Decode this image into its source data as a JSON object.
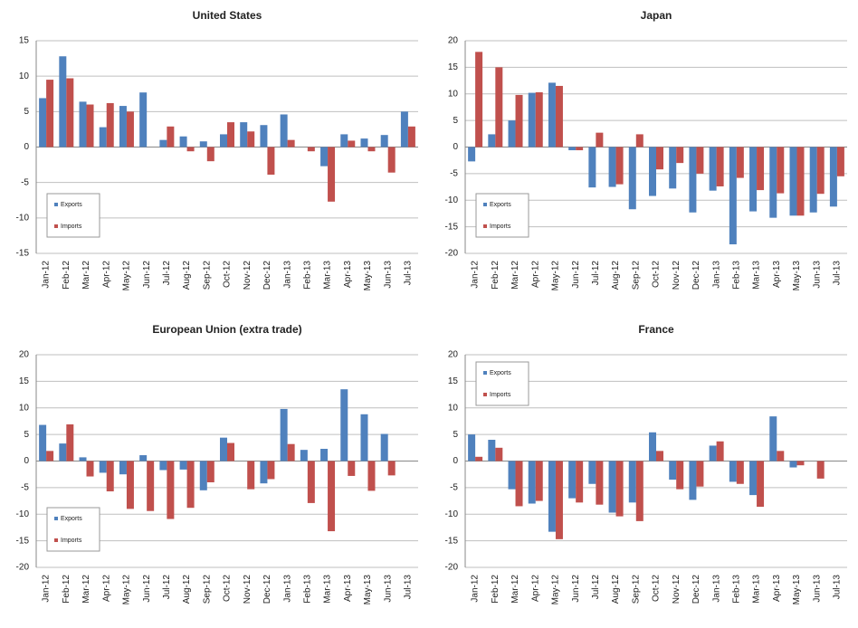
{
  "chart_data": [
    {
      "type": "bar",
      "title": "United States",
      "categories": [
        "Jan-12",
        "Feb-12",
        "Mar-12",
        "Apr-12",
        "May-12",
        "Jun-12",
        "Jul-12",
        "Aug-12",
        "Sep-12",
        "Oct-12",
        "Nov-12",
        "Dec-12",
        "Jan-13",
        "Feb-13",
        "Mar-13",
        "Apr-13",
        "May-13",
        "Jun-13",
        "Jul-13"
      ],
      "series": [
        {
          "name": "Exports",
          "color": "#4f81bd",
          "values": [
            6.9,
            12.8,
            6.4,
            2.8,
            5.8,
            7.7,
            1.0,
            1.5,
            0.8,
            1.8,
            3.5,
            3.1,
            4.6,
            0,
            -2.7,
            1.8,
            1.2,
            1.7,
            5.0
          ]
        },
        {
          "name": "Imports",
          "color": "#c0504d",
          "values": [
            9.5,
            9.7,
            6.0,
            6.2,
            5.0,
            0,
            2.9,
            -0.6,
            -2.0,
            3.5,
            2.2,
            -3.9,
            1.0,
            -0.6,
            -7.7,
            0.9,
            -0.6,
            -3.6,
            2.9
          ]
        }
      ],
      "ylim": [
        -15,
        15
      ],
      "yticks": [
        -15,
        -10,
        -5,
        0,
        5,
        10,
        15
      ],
      "grid": true,
      "legend": "lower left"
    },
    {
      "type": "bar",
      "title": "Japan",
      "categories": [
        "Jan-12",
        "Feb-12",
        "Mar-12",
        "Apr-12",
        "May-12",
        "Jun-12",
        "Jul-12",
        "Aug-12",
        "Sep-12",
        "Oct-12",
        "Nov-12",
        "Dec-12",
        "Jan-13",
        "Feb-13",
        "Mar-13",
        "Apr-13",
        "May-13",
        "Jun-13",
        "Jul-13"
      ],
      "series": [
        {
          "name": "Exports",
          "color": "#4f81bd",
          "values": [
            -2.7,
            2.4,
            5.0,
            10.2,
            12.1,
            -0.6,
            -7.6,
            -7.5,
            -11.7,
            -9.2,
            -7.8,
            -12.3,
            -8.2,
            -18.3,
            -12.1,
            -13.3,
            -12.9,
            -12.3,
            -11.2
          ]
        },
        {
          "name": "Imports",
          "color": "#c0504d",
          "values": [
            17.9,
            15.0,
            9.8,
            10.3,
            11.5,
            -0.6,
            2.7,
            -7.0,
            2.4,
            -4.2,
            -3.0,
            -5.0,
            -7.4,
            -5.8,
            -8.1,
            -8.7,
            -12.9,
            -8.8,
            -5.5
          ]
        }
      ],
      "ylim": [
        -20,
        20
      ],
      "yticks": [
        -20,
        -15,
        -10,
        -5,
        0,
        5,
        10,
        15,
        20
      ],
      "grid": true,
      "legend": "lower left"
    },
    {
      "type": "bar",
      "title": "European Union (extra trade)",
      "categories": [
        "Jan-12",
        "Feb-12",
        "Mar-12",
        "Apr-12",
        "May-12",
        "Jun-12",
        "Jul-12",
        "Aug-12",
        "Sep-12",
        "Oct-12",
        "Nov-12",
        "Dec-12",
        "Jan-13",
        "Feb-13",
        "Mar-13",
        "Apr-13",
        "May-13",
        "Jun-13",
        "Jul-13"
      ],
      "series": [
        {
          "name": "Exports",
          "color": "#4f81bd",
          "values": [
            6.8,
            3.3,
            0.7,
            -2.2,
            -2.5,
            1.1,
            -1.7,
            -1.6,
            -5.5,
            4.4,
            0,
            -4.2,
            9.8,
            2.1,
            2.3,
            13.5,
            8.8,
            5.1,
            0
          ]
        },
        {
          "name": "Imports",
          "color": "#c0504d",
          "values": [
            1.9,
            6.9,
            -2.9,
            -5.7,
            -9.0,
            -9.4,
            -10.9,
            -8.8,
            -4.0,
            3.4,
            -5.3,
            -3.4,
            3.2,
            -7.9,
            -13.2,
            -2.8,
            -5.6,
            -2.7,
            0
          ]
        }
      ],
      "ylim": [
        -20,
        20
      ],
      "yticks": [
        -20,
        -15,
        -10,
        -5,
        0,
        5,
        10,
        15,
        20
      ],
      "grid": true,
      "legend": "lower left"
    },
    {
      "type": "bar",
      "title": "France",
      "categories": [
        "Jan-12",
        "Feb-12",
        "Mar-12",
        "Apr-12",
        "May-12",
        "Jun-12",
        "Jul-12",
        "Aug-12",
        "Sep-12",
        "Oct-12",
        "Nov-12",
        "Dec-12",
        "Jan-13",
        "Feb-13",
        "Mar-13",
        "Apr-13",
        "May-13",
        "Jun-13",
        "Jul-13"
      ],
      "series": [
        {
          "name": "Exports",
          "color": "#4f81bd",
          "values": [
            5.0,
            4.0,
            -5.3,
            -8.0,
            -13.3,
            -7.0,
            -4.3,
            -9.7,
            -7.8,
            5.4,
            -3.5,
            -7.3,
            2.9,
            -3.9,
            -6.4,
            8.4,
            -1.2,
            0,
            0
          ]
        },
        {
          "name": "Imports",
          "color": "#c0504d",
          "values": [
            0.8,
            2.5,
            -8.5,
            -7.5,
            -14.7,
            -7.8,
            -8.2,
            -10.4,
            -11.3,
            1.9,
            -5.3,
            -4.8,
            3.7,
            -4.3,
            -8.6,
            1.9,
            -0.8,
            -3.3,
            0
          ]
        }
      ],
      "ylim": [
        -20,
        20
      ],
      "yticks": [
        -20,
        -15,
        -10,
        -5,
        0,
        5,
        10,
        15,
        20
      ],
      "grid": true,
      "legend": "upper left"
    }
  ]
}
